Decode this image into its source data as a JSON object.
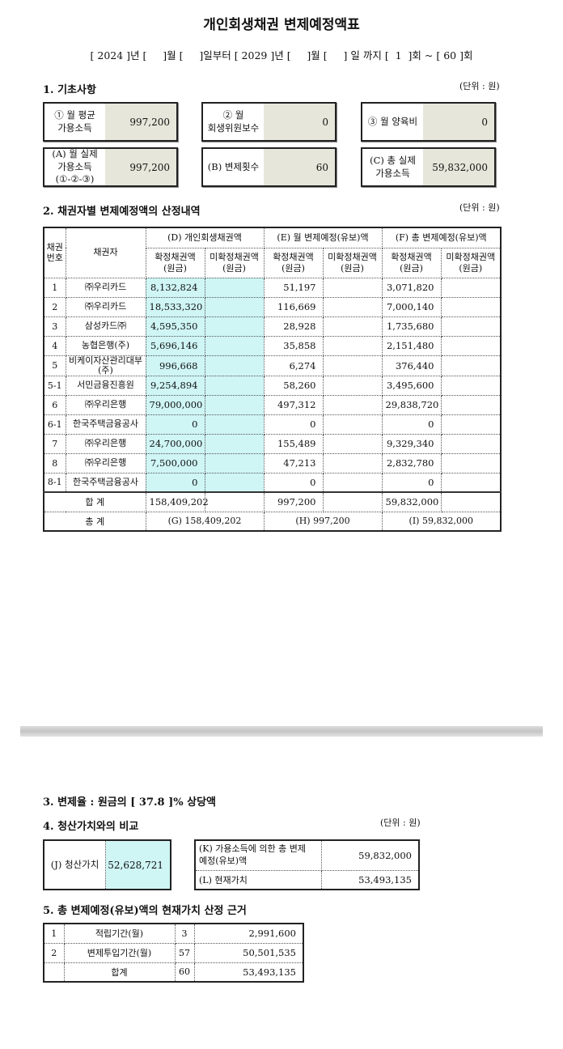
{
  "title": "개인회생채권 변제예정액표",
  "date_line": "[ 2024 ]년 [     ]월 [     ]일부터 [ 2029 ]년 [     ]월 [     ] 일 까지 [  1  ]회 ~ [ 60 ]회",
  "unit": "(단위 : 원)",
  "section1": {
    "heading": "1. 기초사항",
    "boxes": [
      {
        "label": "① 월 평균\n가용소득",
        "value": "997,200"
      },
      {
        "label": "② 월\n회생위원보수",
        "value": "0"
      },
      {
        "label": "③ 월 양육비",
        "value": "0"
      },
      {
        "label": "(A) 월 실제\n가용소득\n(①-②-③)",
        "value": "997,200"
      },
      {
        "label": "(B) 변제횟수",
        "value": "60"
      },
      {
        "label": "(C) 총 실제\n가용소득",
        "value": "59,832,000"
      }
    ]
  },
  "section2": {
    "heading": "2. 채권자별 변제예정액의 산정내역",
    "headers": {
      "no": "채권\n번호",
      "creditor": "채권자",
      "d": "(D) 개인회생채권액",
      "e": "(E) 월 변제예정(유보)액",
      "f": "(F) 총 변제예정(유보)액",
      "confirmed": "확정채권액\n(원금)",
      "unconfirmed": "미확정채권액\n(원금)"
    },
    "rows": [
      {
        "no": "1",
        "creditor": "㈜우리카드",
        "d1": "8,132,824",
        "d2": "",
        "e1": "51,197",
        "e2": "",
        "f1": "3,071,820",
        "f2": ""
      },
      {
        "no": "2",
        "creditor": "㈜우리카드",
        "d1": "18,533,320",
        "d2": "",
        "e1": "116,669",
        "e2": "",
        "f1": "7,000,140",
        "f2": ""
      },
      {
        "no": "3",
        "creditor": "삼성카드㈜",
        "d1": "4,595,350",
        "d2": "",
        "e1": "28,928",
        "e2": "",
        "f1": "1,735,680",
        "f2": ""
      },
      {
        "no": "4",
        "creditor": "농협은행(주)",
        "d1": "5,696,146",
        "d2": "",
        "e1": "35,858",
        "e2": "",
        "f1": "2,151,480",
        "f2": ""
      },
      {
        "no": "5",
        "creditor": "비케이자산관리대부\n(주)",
        "d1": "996,668",
        "d2": "",
        "e1": "6,274",
        "e2": "",
        "f1": "376,440",
        "f2": ""
      },
      {
        "no": "5-1",
        "creditor": "서민금융진흥원",
        "d1": "9,254,894",
        "d2": "",
        "e1": "58,260",
        "e2": "",
        "f1": "3,495,600",
        "f2": ""
      },
      {
        "no": "6",
        "creditor": "㈜우리은행",
        "d1": "79,000,000",
        "d2": "",
        "e1": "497,312",
        "e2": "",
        "f1": "29,838,720",
        "f2": ""
      },
      {
        "no": "6-1",
        "creditor": "한국주택금융공사",
        "d1": "0",
        "d2": "",
        "e1": "0",
        "e2": "",
        "f1": "0",
        "f2": ""
      },
      {
        "no": "7",
        "creditor": "㈜우리은행",
        "d1": "24,700,000",
        "d2": "",
        "e1": "155,489",
        "e2": "",
        "f1": "9,329,340",
        "f2": ""
      },
      {
        "no": "8",
        "creditor": "㈜우리은행",
        "d1": "7,500,000",
        "d2": "",
        "e1": "47,213",
        "e2": "",
        "f1": "2,832,780",
        "f2": ""
      },
      {
        "no": "8-1",
        "creditor": "한국주택금융공사",
        "d1": "0",
        "d2": "",
        "e1": "0",
        "e2": "",
        "f1": "0",
        "f2": ""
      }
    ],
    "sum": {
      "label": "합 계",
      "d1": "158,409,202",
      "d2": "",
      "e1": "997,200",
      "e2": "",
      "f1": "59,832,000",
      "f2": ""
    },
    "total": {
      "label": "총 계",
      "g": "(G) 158,409,202",
      "h": "(H) 997,200",
      "i": "(I) 59,832,000"
    }
  },
  "section3": {
    "heading": "3. 변제율 : 원금의 [ 37.8 ]% 상당액"
  },
  "section4": {
    "heading": "4. 청산가치와의 비교",
    "j_label": "(J) 청산가치",
    "j_value": "52,628,721",
    "k_label": "(K) 가용소득에 의한 총 변제\n예정(유보)액",
    "k_value": "59,832,000",
    "l_label": "(L) 현재가치",
    "l_value": "53,493,135"
  },
  "section5": {
    "heading": "5. 총 변제예정(유보)액의 현재가치 산정 근거",
    "rows": [
      {
        "no": "1",
        "label": "적립기간(월)",
        "months": "3",
        "amount": "2,991,600"
      },
      {
        "no": "2",
        "label": "변제투입기간(월)",
        "months": "57",
        "amount": "50,501,535"
      },
      {
        "no": "",
        "label": "합계",
        "months": "60",
        "amount": "53,493,135"
      }
    ]
  },
  "colors": {
    "value_bg": "#e6e6da",
    "highlight": "#cff5f5"
  }
}
